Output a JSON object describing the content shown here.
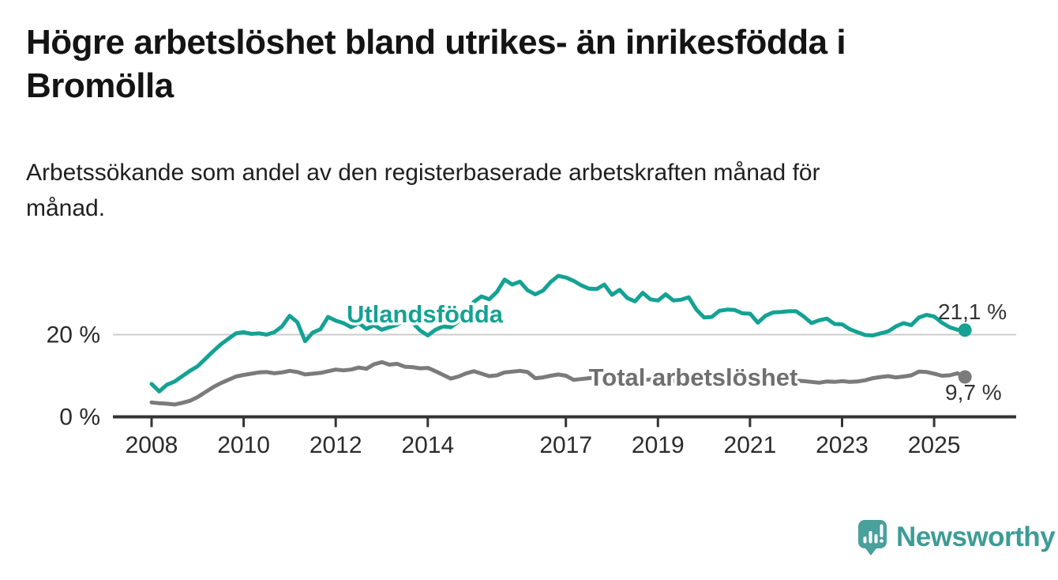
{
  "header": {
    "title_line1": "Högre arbetslöshet bland utrikes- än inrikesfödda i",
    "title_line2": "Bromölla",
    "subtitle_line1": "Arbetssökande som andel av den registerbaserade arbetskraften månad för",
    "subtitle_line2": "månad."
  },
  "branding": {
    "logo_text": "Newsworthy",
    "logo_text_color": "#3d9c96",
    "logo_icon_color": "#4aa09b"
  },
  "chart_data": {
    "type": "line",
    "title": "Högre arbetslöshet bland utrikes- än inrikesfödda i Bromölla",
    "subtitle": "Arbetssökande som andel av den registerbaserade arbetskraften månad för månad.",
    "unit": "%",
    "x_start_year": 2008.0,
    "x_step_years": 0.1667,
    "x_end_year": 2025.67,
    "x_ticks": [
      2008,
      2010,
      2012,
      2014,
      2017,
      2019,
      2021,
      2023,
      2025
    ],
    "y_ticks": [
      {
        "value": 20,
        "label": "20 %"
      },
      {
        "value": 0,
        "label": "0 %"
      }
    ],
    "ylim": [
      0,
      36
    ],
    "grid": "single horizontal gridline at 20 %",
    "grid_color": "#cccccc",
    "axis_color": "#333333",
    "tick_label_color": "#2b2b2b",
    "end_label_color": "#333333",
    "legend_position": "inline labels on lines",
    "series": [
      {
        "name": "Utlandsfödda",
        "color": "#14a294",
        "label_color": "#14a294",
        "end_label": "21,1 %",
        "end_value": 21.1,
        "values": [
          8.0,
          6.2,
          7.8,
          8.6,
          9.9,
          11.2,
          12.3,
          14.1,
          15.9,
          17.6,
          19.0,
          20.3,
          20.6,
          20.2,
          20.3,
          20.0,
          20.6,
          22.0,
          24.6,
          23.0,
          18.4,
          20.5,
          21.3,
          24.3,
          23.4,
          22.8,
          21.8,
          22.8,
          21.4,
          22.3,
          21.2,
          21.8,
          22.4,
          23.8,
          22.9,
          21.0,
          19.8,
          21.2,
          22.0,
          21.8,
          23.2,
          24.8,
          28.0,
          29.3,
          28.6,
          30.4,
          33.4,
          32.2,
          32.9,
          30.8,
          29.8,
          30.7,
          32.8,
          34.3,
          33.9,
          33.1,
          32.0,
          31.2,
          31.1,
          32.2,
          29.7,
          30.9,
          28.9,
          28.1,
          30.2,
          28.6,
          28.3,
          29.8,
          28.3,
          28.5,
          29.1,
          26.1,
          24.2,
          24.3,
          25.8,
          26.1,
          26.0,
          25.2,
          25.1,
          22.9,
          24.6,
          25.4,
          25.5,
          25.7,
          25.7,
          24.4,
          22.8,
          23.5,
          23.9,
          22.6,
          22.5,
          21.3,
          20.6,
          19.9,
          19.8,
          20.3,
          20.8,
          22.0,
          22.8,
          22.3,
          24.2,
          24.8,
          24.4,
          22.9,
          21.8,
          21.2,
          21.1
        ]
      },
      {
        "name": "Total arbetslöshet",
        "color": "#7b7b7b",
        "label_color": "#6f6f6f",
        "end_label": "9,7 %",
        "end_value": 9.7,
        "values": [
          3.5,
          3.3,
          3.2,
          3.0,
          3.4,
          3.9,
          4.8,
          6.0,
          7.2,
          8.2,
          9.0,
          9.8,
          10.2,
          10.5,
          10.8,
          10.9,
          10.6,
          10.8,
          11.2,
          10.9,
          10.3,
          10.5,
          10.7,
          11.1,
          11.5,
          11.3,
          11.5,
          12.0,
          11.7,
          12.8,
          13.3,
          12.7,
          12.9,
          12.2,
          12.1,
          11.8,
          11.9,
          11.1,
          10.2,
          9.3,
          9.8,
          10.6,
          11.1,
          10.5,
          9.9,
          10.1,
          10.8,
          11.0,
          11.2,
          10.9,
          9.4,
          9.6,
          10.0,
          10.3,
          10.0,
          9.0,
          9.2,
          9.4,
          9.6,
          9.8,
          9.5,
          9.2,
          8.9,
          8.7,
          8.9,
          9.1,
          8.9,
          9.0,
          8.8,
          8.9,
          9.1,
          9.0,
          9.2,
          9.8,
          10.4,
          10.2,
          10.0,
          9.8,
          9.7,
          9.5,
          9.3,
          9.2,
          9.0,
          8.9,
          8.8,
          8.7,
          8.5,
          8.3,
          8.6,
          8.5,
          8.7,
          8.5,
          8.6,
          8.9,
          9.4,
          9.7,
          9.9,
          9.6,
          9.8,
          10.1,
          11.0,
          10.9,
          10.5,
          10.0,
          10.1,
          10.6,
          9.7
        ]
      }
    ]
  }
}
